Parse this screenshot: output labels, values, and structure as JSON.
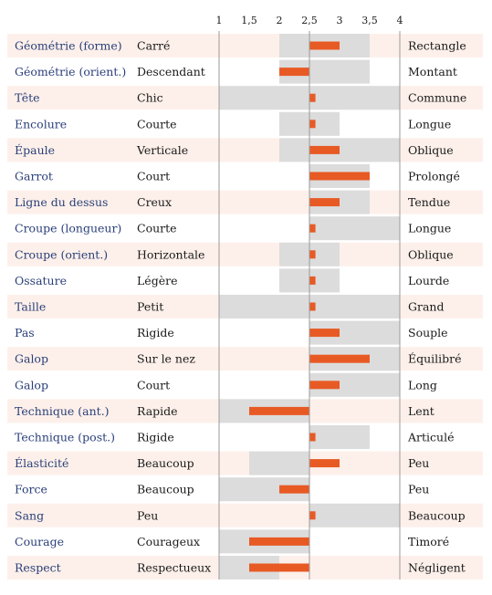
{
  "chart_data": {
    "type": "bar",
    "title": "",
    "xlabel": "",
    "ylabel": "",
    "xlim": [
      1,
      4
    ],
    "ticks": [
      "1",
      "1,5",
      "2",
      "2,5",
      "3",
      "3,5",
      "4"
    ],
    "tick_values": [
      1,
      1.5,
      2,
      2.5,
      3,
      3.5,
      4
    ],
    "center": 2.5,
    "colors": {
      "bar": "#e85a24",
      "range": "#dcdcdc",
      "band": "#fdf0ea",
      "trait_text": "#2a3f7a",
      "axis": "#9a9a9a"
    },
    "rows": [
      {
        "trait": "Géométrie (forme)",
        "low": "Carré",
        "high": "Rectangle",
        "value": 3.0,
        "range": [
          2.0,
          3.5
        ]
      },
      {
        "trait": "Géométrie (orient.)",
        "low": "Descendant",
        "high": "Montant",
        "value": 2.0,
        "range": [
          2.0,
          3.5
        ]
      },
      {
        "trait": "Tête",
        "low": "Chic",
        "high": "Commune",
        "value": 2.6,
        "range": [
          1.0,
          4.0
        ]
      },
      {
        "trait": "Encolure",
        "low": "Courte",
        "high": "Longue",
        "value": 2.6,
        "range": [
          2.0,
          3.0
        ]
      },
      {
        "trait": "Épaule",
        "low": "Verticale",
        "high": "Oblique",
        "value": 3.0,
        "range": [
          2.0,
          4.0
        ]
      },
      {
        "trait": "Garrot",
        "low": "Court",
        "high": "Prolongé",
        "value": 3.5,
        "range": [
          2.5,
          3.5
        ]
      },
      {
        "trait": "Ligne du dessus",
        "low": "Creux",
        "high": "Tendue",
        "value": 3.0,
        "range": [
          2.5,
          3.5
        ]
      },
      {
        "trait": "Croupe (longueur)",
        "low": "Courte",
        "high": "Longue",
        "value": 2.6,
        "range": [
          2.5,
          4.0
        ]
      },
      {
        "trait": "Croupe (orient.)",
        "low": "Horizontale",
        "high": "Oblique",
        "value": 2.6,
        "range": [
          2.0,
          3.0
        ]
      },
      {
        "trait": "Ossature",
        "low": "Légère",
        "high": "Lourde",
        "value": 2.6,
        "range": [
          2.0,
          3.0
        ]
      },
      {
        "trait": "Taille",
        "low": "Petit",
        "high": "Grand",
        "value": 2.6,
        "range": [
          1.0,
          4.0
        ]
      },
      {
        "trait": "Pas",
        "low": "Rigide",
        "high": "Souple",
        "value": 3.0,
        "range": [
          2.5,
          4.0
        ]
      },
      {
        "trait": "Galop",
        "low": "Sur le nez",
        "high": "Équilibré",
        "value": 3.5,
        "range": [
          2.5,
          4.0
        ]
      },
      {
        "trait": "Galop",
        "low": "Court",
        "high": "Long",
        "value": 3.0,
        "range": [
          2.5,
          4.0
        ]
      },
      {
        "trait": "Technique (ant.)",
        "low": "Rapide",
        "high": "Lent",
        "value": 1.5,
        "range": [
          1.0,
          2.5
        ]
      },
      {
        "trait": "Technique (post.)",
        "low": "Rigide",
        "high": "Articulé",
        "value": 2.6,
        "range": [
          2.5,
          3.5
        ]
      },
      {
        "trait": "Élasticité",
        "low": "Beaucoup",
        "high": "Peu",
        "value": 3.0,
        "range": [
          1.5,
          2.5
        ]
      },
      {
        "trait": "Force",
        "low": "Beaucoup",
        "high": "Peu",
        "value": 2.0,
        "range": [
          1.0,
          2.5
        ]
      },
      {
        "trait": "Sang",
        "low": "Peu",
        "high": "Beaucoup",
        "value": 2.6,
        "range": [
          2.5,
          4.0
        ]
      },
      {
        "trait": "Courage",
        "low": "Courageux",
        "high": "Timoré",
        "value": 1.5,
        "range": [
          1.0,
          2.5
        ]
      },
      {
        "trait": "Respect",
        "low": "Respectueux",
        "high": "Négligent",
        "value": 1.5,
        "range": [
          1.0,
          2.0
        ]
      }
    ]
  }
}
